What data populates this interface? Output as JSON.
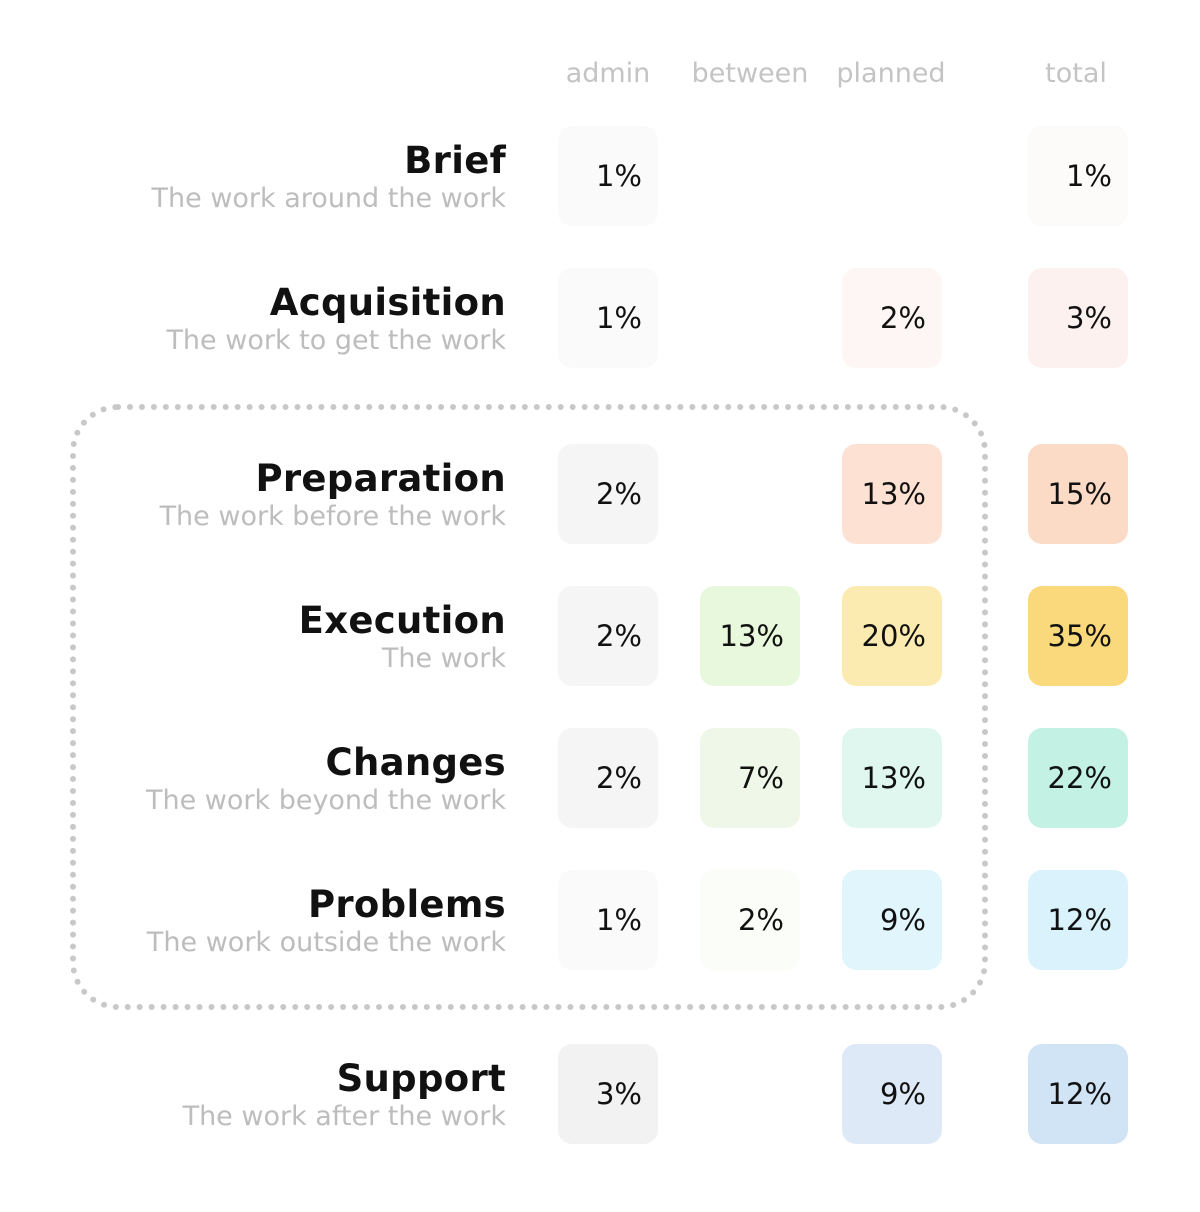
{
  "chart_data": {
    "type": "table",
    "title": "",
    "columns": [
      "admin",
      "between",
      "planned",
      "total"
    ],
    "rows": [
      {
        "name": "Brief",
        "description": "The work around the work",
        "cells": {
          "admin": "1%",
          "total": "1%"
        }
      },
      {
        "name": "Acquisition",
        "description": "The work to get the work",
        "cells": {
          "admin": "1%",
          "planned": "2%",
          "total": "3%"
        }
      },
      {
        "name": "Preparation",
        "description": "The work before the work",
        "cells": {
          "admin": "2%",
          "planned": "13%",
          "total": "15%"
        }
      },
      {
        "name": "Execution",
        "description": "The work",
        "cells": {
          "admin": "2%",
          "between": "13%",
          "planned": "20%",
          "total": "35%"
        }
      },
      {
        "name": "Changes",
        "description": "The work beyond the work",
        "cells": {
          "admin": "2%",
          "between": "7%",
          "planned": "13%",
          "total": "22%"
        }
      },
      {
        "name": "Problems",
        "description": "The work outside the work",
        "cells": {
          "admin": "1%",
          "between": "2%",
          "planned": "9%",
          "total": "12%"
        }
      },
      {
        "name": "Support",
        "description": "The work after the work",
        "cells": {
          "admin": "3%",
          "planned": "9%",
          "total": "12%"
        }
      }
    ],
    "grouped_rows": [
      "Preparation",
      "Execution",
      "Changes",
      "Problems"
    ],
    "cell_colors": {
      "Brief": {
        "admin": "#fafafa",
        "total": "#fcfbfa"
      },
      "Acquisition": {
        "admin": "#fafafa",
        "planned": "#fdf6f4",
        "total": "#fcf1ee"
      },
      "Preparation": {
        "admin": "#f5f5f5",
        "planned": "#fde2d4",
        "total": "#fcdbc6"
      },
      "Execution": {
        "admin": "#f5f5f5",
        "between": "#e8f8dc",
        "planned": "#fcebb0",
        "total": "#f9d97c"
      },
      "Changes": {
        "admin": "#f5f5f5",
        "between": "#eff8e8",
        "planned": "#dff7ef",
        "total": "#c3f1e3"
      },
      "Problems": {
        "admin": "#fafafa",
        "between": "#fbfdf8",
        "planned": "#e1f5fd",
        "total": "#d9f2fc"
      },
      "Support": {
        "admin": "#f2f2f2",
        "planned": "#dde9f7",
        "total": "#d1e4f6"
      }
    }
  }
}
